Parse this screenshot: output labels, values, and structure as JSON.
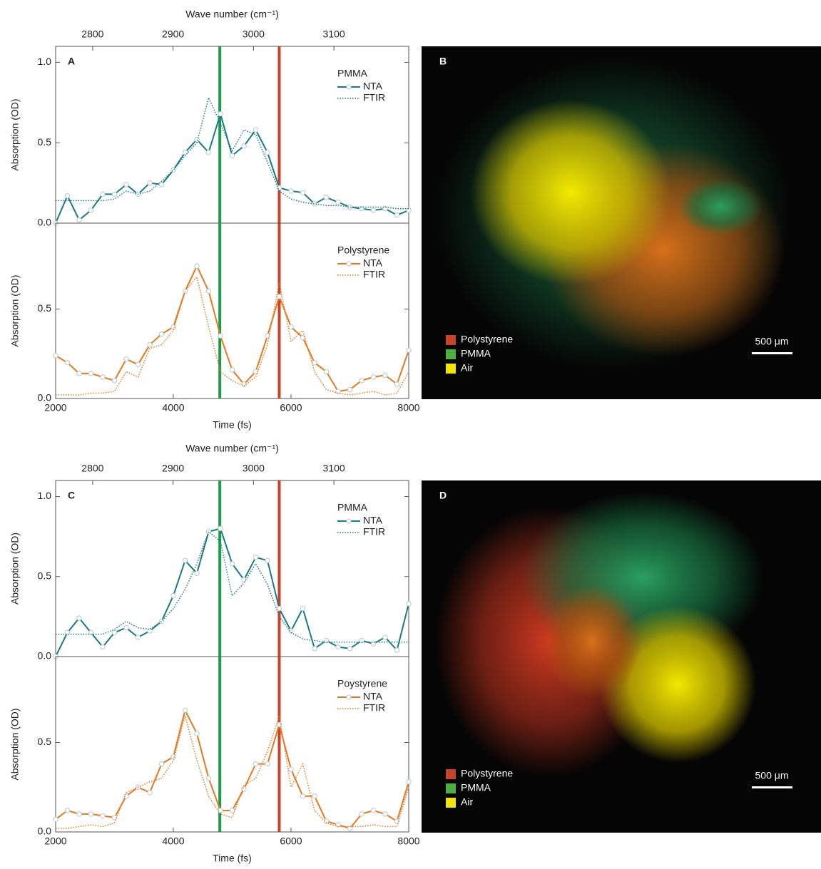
{
  "chart_data": [
    {
      "type": "line",
      "panel_label": "A",
      "legend_title": "PMMA",
      "ylabel": "Absorption (OD)",
      "x2label": "Wave number (cm⁻¹)",
      "x2lim": [
        2754,
        3193
      ],
      "x2ticks": [
        2800,
        2900,
        3000,
        3100
      ],
      "x": [
        2000,
        2200,
        2400,
        2600,
        2800,
        3000,
        3200,
        3400,
        3600,
        3800,
        4000,
        4200,
        4400,
        4600,
        4800,
        5000,
        5200,
        5400,
        5600,
        5800,
        6000,
        6200,
        6400,
        6600,
        6800,
        7000,
        7200,
        7400,
        7600,
        7800,
        8000
      ],
      "series": [
        {
          "name": "NTA",
          "color": "#1a7a86",
          "style": "solid",
          "marker": "circle",
          "values": [
            0.0,
            0.17,
            0.02,
            0.08,
            0.18,
            0.18,
            0.24,
            0.18,
            0.25,
            0.24,
            0.33,
            0.44,
            0.52,
            0.44,
            0.68,
            0.42,
            0.48,
            0.58,
            0.44,
            0.22,
            0.2,
            0.19,
            0.12,
            0.16,
            0.13,
            0.1,
            0.09,
            0.08,
            0.09,
            0.05,
            0.08
          ]
        },
        {
          "name": "FTIR",
          "color": "#1a7a86",
          "style": "dotted",
          "values": [
            0.14,
            0.14,
            0.14,
            0.14,
            0.14,
            0.15,
            0.2,
            0.18,
            0.2,
            0.26,
            0.33,
            0.42,
            0.5,
            0.78,
            0.62,
            0.45,
            0.58,
            0.55,
            0.38,
            0.2,
            0.15,
            0.13,
            0.12,
            0.11,
            0.11,
            0.1,
            0.1,
            0.1,
            0.1,
            0.09,
            0.09
          ]
        }
      ],
      "xlim": [
        2000,
        8000
      ],
      "ylim": [
        0,
        1.1
      ],
      "yticks": [
        {
          "value": 0,
          "label": "0.0"
        },
        0.5,
        {
          "value": 1,
          "label": "1.0"
        }
      ],
      "vlines": [
        {
          "value": 4790,
          "color": "#1e9a4a"
        },
        {
          "value": 5800,
          "color": "#c9432b"
        }
      ]
    },
    {
      "type": "line",
      "legend_title": "Polystyrene",
      "ylabel": "Absorption (OD)",
      "xlabel": "Time (fs)",
      "x": [
        2000,
        2200,
        2400,
        2600,
        2800,
        3000,
        3200,
        3400,
        3600,
        3800,
        4000,
        4200,
        4400,
        4600,
        4800,
        5000,
        5200,
        5400,
        5600,
        5800,
        6000,
        6200,
        6400,
        6600,
        6800,
        7000,
        7200,
        7400,
        7600,
        7800,
        8000
      ],
      "series": [
        {
          "name": "NTA",
          "color": "#e8781e",
          "style": "solid",
          "marker": "circle",
          "values": [
            0.24,
            0.2,
            0.14,
            0.14,
            0.12,
            0.1,
            0.22,
            0.19,
            0.3,
            0.36,
            0.4,
            0.6,
            0.74,
            0.6,
            0.35,
            0.16,
            0.08,
            0.15,
            0.35,
            0.57,
            0.4,
            0.34,
            0.2,
            0.15,
            0.04,
            0.05,
            0.1,
            0.12,
            0.13,
            0.08,
            0.27
          ]
        },
        {
          "name": "FTIR",
          "color": "#e8781e",
          "style": "dotted",
          "values": [
            0.02,
            0.02,
            0.02,
            0.03,
            0.03,
            0.04,
            0.15,
            0.12,
            0.28,
            0.3,
            0.38,
            0.6,
            0.68,
            0.4,
            0.15,
            0.1,
            0.07,
            0.12,
            0.3,
            0.65,
            0.32,
            0.38,
            0.15,
            0.05,
            0.03,
            0.02,
            0.03,
            0.04,
            0.02,
            0.03,
            0.15
          ]
        }
      ],
      "xlim": [
        2000,
        8000
      ],
      "xticks": [
        2000,
        4000,
        6000,
        8000
      ],
      "ylim": [
        0,
        0.98
      ],
      "yticks": [
        {
          "value": 0,
          "label": "0.0"
        },
        0.5
      ],
      "vlines": [
        {
          "value": 4790,
          "color": "#1e9a4a"
        },
        {
          "value": 5800,
          "color": "#c9432b"
        }
      ]
    },
    {
      "type": "line",
      "panel_label": "C",
      "legend_title": "PMMA",
      "ylabel": "Absorption (OD)",
      "x2label": "Wave number (cm⁻¹)",
      "x2lim": [
        2754,
        3193
      ],
      "x2ticks": [
        2800,
        2900,
        3000,
        3100
      ],
      "x": [
        2000,
        2200,
        2400,
        2600,
        2800,
        3000,
        3200,
        3400,
        3600,
        3800,
        4000,
        4200,
        4400,
        4600,
        4800,
        5000,
        5200,
        5400,
        5600,
        5800,
        6000,
        6200,
        6400,
        6600,
        6800,
        7000,
        7200,
        7400,
        7600,
        7800,
        8000
      ],
      "series": [
        {
          "name": "NTA",
          "color": "#1a7a86",
          "style": "solid",
          "marker": "circle",
          "values": [
            0.0,
            0.15,
            0.24,
            0.15,
            0.06,
            0.15,
            0.18,
            0.12,
            0.16,
            0.22,
            0.38,
            0.6,
            0.52,
            0.78,
            0.8,
            0.58,
            0.48,
            0.62,
            0.6,
            0.3,
            0.16,
            0.3,
            0.05,
            0.1,
            0.06,
            0.05,
            0.1,
            0.08,
            0.12,
            0.04,
            0.33
          ]
        },
        {
          "name": "FTIR",
          "color": "#1a7a86",
          "style": "dotted",
          "values": [
            0.14,
            0.14,
            0.14,
            0.14,
            0.14,
            0.17,
            0.22,
            0.18,
            0.17,
            0.22,
            0.3,
            0.42,
            0.58,
            0.78,
            0.72,
            0.38,
            0.46,
            0.58,
            0.45,
            0.25,
            0.15,
            0.11,
            0.1,
            0.09,
            0.09,
            0.09,
            0.09,
            0.09,
            0.09,
            0.09,
            0.09
          ]
        }
      ],
      "xlim": [
        2000,
        8000
      ],
      "ylim": [
        0,
        1.1
      ],
      "yticks": [
        {
          "value": 0,
          "label": "0.0"
        },
        0.5,
        {
          "value": 1,
          "label": "1.0"
        }
      ],
      "vlines": [
        {
          "value": 4790,
          "color": "#1e9a4a"
        },
        {
          "value": 5800,
          "color": "#c9432b"
        }
      ]
    },
    {
      "type": "line",
      "legend_title": "Poystyrene",
      "ylabel": "Absorption (OD)",
      "xlabel": "Time (fs)",
      "x": [
        2000,
        2200,
        2400,
        2600,
        2800,
        3000,
        3200,
        3400,
        3600,
        3800,
        4000,
        4200,
        4400,
        4600,
        4800,
        5000,
        5200,
        5400,
        5600,
        5800,
        6000,
        6200,
        6400,
        6600,
        6800,
        7000,
        7200,
        7400,
        7600,
        7800,
        8000
      ],
      "series": [
        {
          "name": "NTA",
          "color": "#e8781e",
          "style": "solid",
          "marker": "circle",
          "values": [
            0.07,
            0.12,
            0.1,
            0.1,
            0.09,
            0.08,
            0.2,
            0.25,
            0.22,
            0.38,
            0.42,
            0.68,
            0.55,
            0.3,
            0.12,
            0.12,
            0.24,
            0.38,
            0.38,
            0.6,
            0.35,
            0.2,
            0.2,
            0.06,
            0.04,
            0.02,
            0.1,
            0.12,
            0.1,
            0.06,
            0.28
          ]
        },
        {
          "name": "FTIR",
          "color": "#e8781e",
          "style": "dotted",
          "values": [
            0.02,
            0.02,
            0.03,
            0.04,
            0.03,
            0.05,
            0.22,
            0.25,
            0.28,
            0.3,
            0.4,
            0.65,
            0.4,
            0.2,
            0.1,
            0.08,
            0.26,
            0.3,
            0.45,
            0.65,
            0.25,
            0.38,
            0.12,
            0.05,
            0.03,
            0.03,
            0.03,
            0.04,
            0.03,
            0.03,
            0.25
          ]
        }
      ],
      "xlim": [
        2000,
        8000
      ],
      "xticks": [
        2000,
        4000,
        6000,
        8000
      ],
      "ylim": [
        0,
        0.98
      ],
      "yticks": [
        {
          "value": 0,
          "label": "0.0"
        },
        0.5
      ],
      "vlines": [
        {
          "value": 4790,
          "color": "#1e9a4a"
        },
        {
          "value": 5800,
          "color": "#c9432b"
        }
      ]
    }
  ],
  "images": [
    {
      "label": "B",
      "legend": [
        {
          "name": "Polystyrene",
          "color": "#c9432b"
        },
        {
          "name": "PMMA",
          "color": "#4caf3e"
        },
        {
          "name": "Air",
          "color": "#f2e500"
        }
      ],
      "scale_bar": "500 μm"
    },
    {
      "label": "D",
      "legend": [
        {
          "name": "Polystyrene",
          "color": "#c9432b"
        },
        {
          "name": "PMMA",
          "color": "#4caf3e"
        },
        {
          "name": "Air",
          "color": "#f2e500"
        }
      ],
      "scale_bar": "500 μm"
    }
  ]
}
